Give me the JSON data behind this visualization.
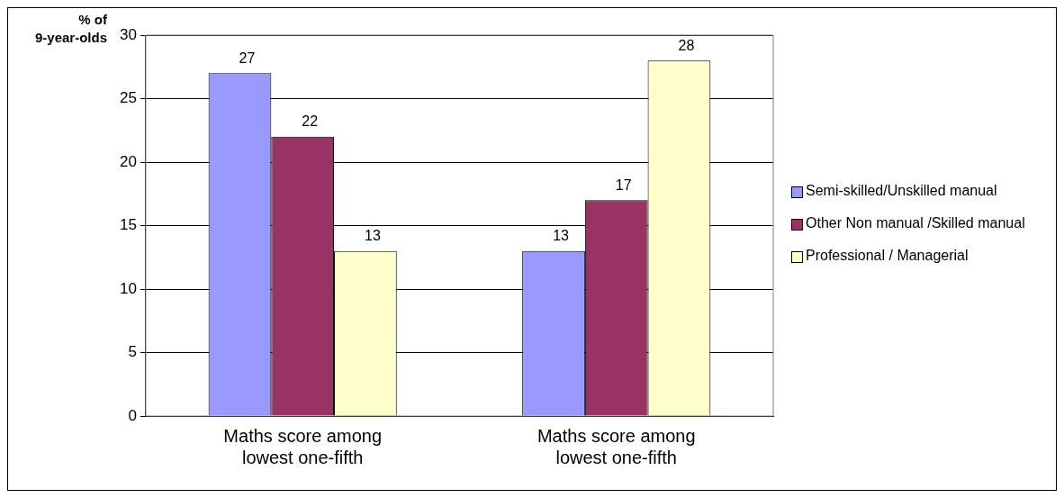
{
  "chart_data": {
    "type": "bar",
    "ylabel": "% of 9-year-olds",
    "categories": [
      "Maths score among lowest one-fifth",
      "Maths score among lowest one-fifth"
    ],
    "series": [
      {
        "name": "Semi-skilled/Unskilled manual",
        "color": "#9999ff",
        "values": [
          27,
          13
        ]
      },
      {
        "name": "Other Non manual /Skilled manual",
        "color": "#993366",
        "values": [
          22,
          17
        ]
      },
      {
        "name": "Professional / Managerial",
        "color": "#ffffcc",
        "values": [
          13,
          28
        ]
      }
    ],
    "ylim": [
      0,
      30
    ],
    "yticks": [
      0,
      5,
      10,
      15,
      20,
      25,
      30
    ],
    "grid": "y",
    "legend": "right",
    "data_labels": true
  }
}
